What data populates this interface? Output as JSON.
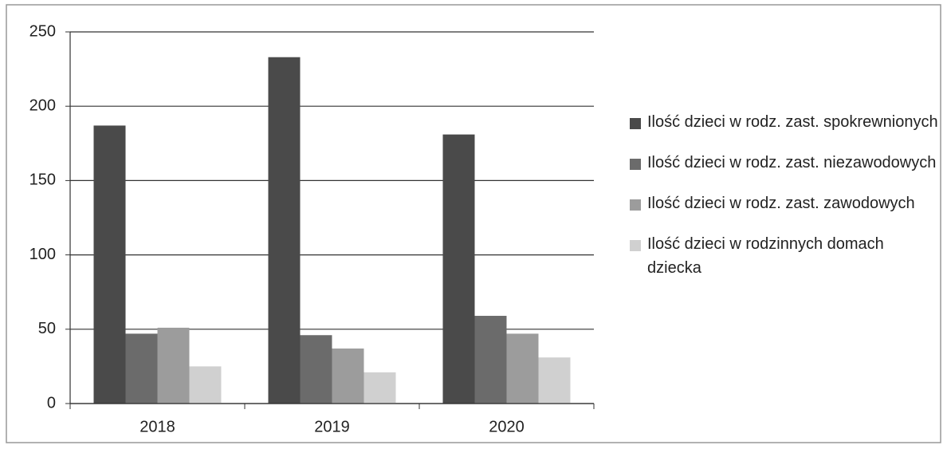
{
  "chart_data": {
    "type": "bar",
    "categories": [
      "2018",
      "2019",
      "2020"
    ],
    "series": [
      {
        "name": "Ilość dzieci w rodz. zast. spokrewnionych",
        "color": "#4a4a4a",
        "values": [
          187,
          233,
          181
        ]
      },
      {
        "name": "Ilość dzieci w rodz. zast. niezawodowych",
        "color": "#6b6b6b",
        "values": [
          47,
          46,
          59
        ]
      },
      {
        "name": "Ilość dzieci w rodz. zast. zawodowych",
        "color": "#9c9c9c",
        "values": [
          51,
          37,
          47
        ]
      },
      {
        "name": "Ilość dzieci w rodzinnych domach dziecka",
        "color": "#d0d0d0",
        "values": [
          25,
          21,
          31
        ]
      }
    ],
    "ylim": [
      0,
      250
    ],
    "yticks": [
      0,
      50,
      100,
      150,
      200,
      250
    ],
    "grid": true,
    "legend": "right"
  }
}
